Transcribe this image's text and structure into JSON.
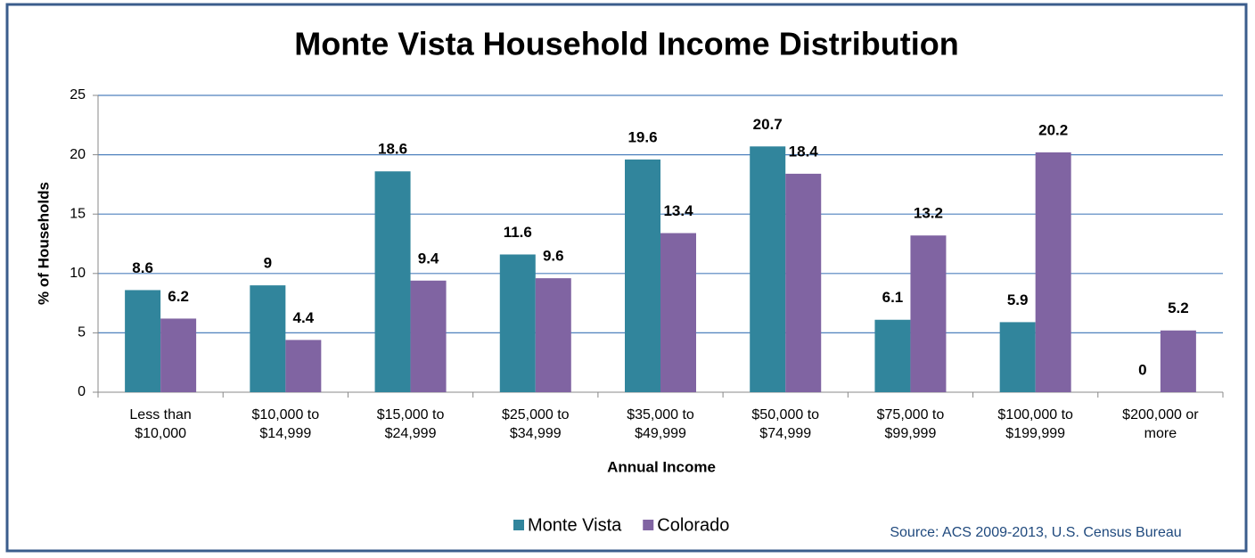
{
  "chart_data": {
    "type": "bar",
    "title": "Monte Vista Household Income Distribution",
    "x_label": "Annual Income",
    "y_label": "% of Households",
    "source": "Source: ACS 2009-2013, U.S. Census Bureau",
    "categories": [
      [
        "Less than",
        "$10,000"
      ],
      [
        "$10,000 to",
        "$14,999"
      ],
      [
        "$15,000 to",
        "$24,999"
      ],
      [
        "$25,000 to",
        "$34,999"
      ],
      [
        "$35,000 to",
        "$49,999"
      ],
      [
        "$50,000 to",
        "$74,999"
      ],
      [
        "$75,000 to",
        "$99,999"
      ],
      [
        "$100,000 to",
        "$199,999"
      ],
      [
        "$200,000 or",
        "more"
      ]
    ],
    "series": [
      {
        "name": "Monte Vista",
        "color": "#31859c",
        "values": [
          8.6,
          9,
          18.6,
          11.6,
          19.6,
          20.7,
          6.1,
          5.9,
          0
        ]
      },
      {
        "name": "Colorado",
        "color": "#8064a2",
        "values": [
          6.2,
          4.4,
          9.4,
          9.6,
          13.4,
          18.4,
          13.2,
          20.2,
          5.2
        ]
      }
    ],
    "ylim": [
      0,
      25
    ],
    "yticks": [
      0,
      5,
      10,
      15,
      20,
      25
    ],
    "grid": true,
    "legend": "bottom"
  }
}
